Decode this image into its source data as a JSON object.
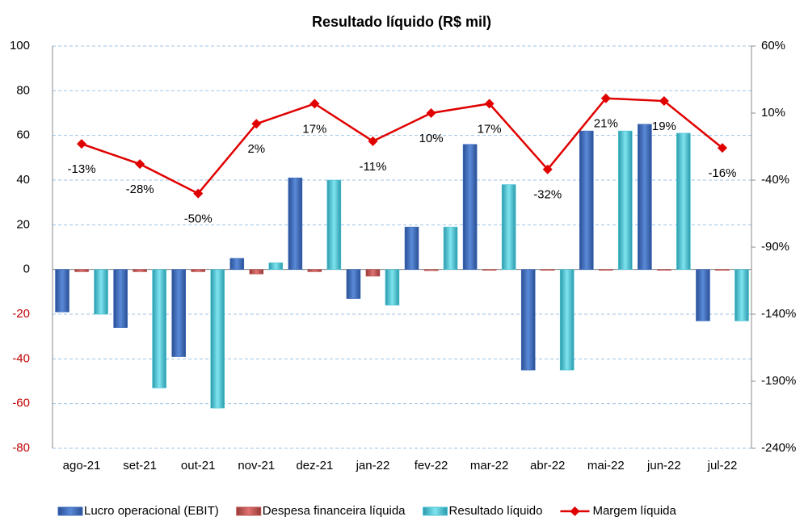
{
  "chart_data": {
    "type": "bar",
    "title": "Resultado líquido (R$ mil)",
    "categories": [
      "ago-21",
      "set-21",
      "out-21",
      "nov-21",
      "dez-21",
      "jan-22",
      "fev-22",
      "mar-22",
      "abr-22",
      "mai-22",
      "jun-22",
      "jul-22"
    ],
    "series": [
      {
        "name": "Lucro operacional (EBIT)",
        "type": "bar",
        "color": "#3c6cc0",
        "values": [
          -19,
          -26,
          -39,
          5,
          41,
          -13,
          19,
          56,
          -45,
          62,
          65,
          -23
        ]
      },
      {
        "name": "Despesa financeira líquida",
        "type": "bar",
        "color": "#c0504d",
        "values": [
          -1,
          -1,
          -1,
          -2,
          -1,
          -3,
          -0.5,
          -0.3,
          0,
          0,
          0,
          0
        ]
      },
      {
        "name": "Resultado líquido",
        "type": "bar",
        "color": "#4cc6d6",
        "values": [
          -20,
          -53,
          -62,
          3,
          40,
          -16,
          19,
          38,
          -45,
          62,
          61,
          -23
        ]
      },
      {
        "name": "Margem líquida",
        "type": "line",
        "axis": "y2",
        "color": "#e00000",
        "values": [
          -13,
          -28,
          -50,
          2,
          17,
          -11,
          10,
          17,
          -32,
          21,
          19,
          -16
        ],
        "value_labels": [
          "-13%",
          "-28%",
          "-50%",
          "2%",
          "17%",
          "-11%",
          "10%",
          "17%",
          "-32%",
          "21%",
          "19%",
          "-16%"
        ]
      }
    ],
    "ylim": [
      -80,
      100
    ],
    "yticks": [
      -80,
      -60,
      -40,
      -20,
      0,
      20,
      40,
      60,
      80,
      100
    ],
    "y2lim": [
      -240,
      60
    ],
    "y2ticks": [
      {
        "value": -240,
        "label": "-240%"
      },
      {
        "value": -190,
        "label": "-190%"
      },
      {
        "value": -140,
        "label": "-140%"
      },
      {
        "value": -90,
        "label": "-90%"
      },
      {
        "value": -40,
        "label": "-40%"
      },
      {
        "value": 10,
        "label": "10%"
      },
      {
        "value": 60,
        "label": "60%"
      }
    ],
    "grid": true,
    "legend": "bottom"
  }
}
